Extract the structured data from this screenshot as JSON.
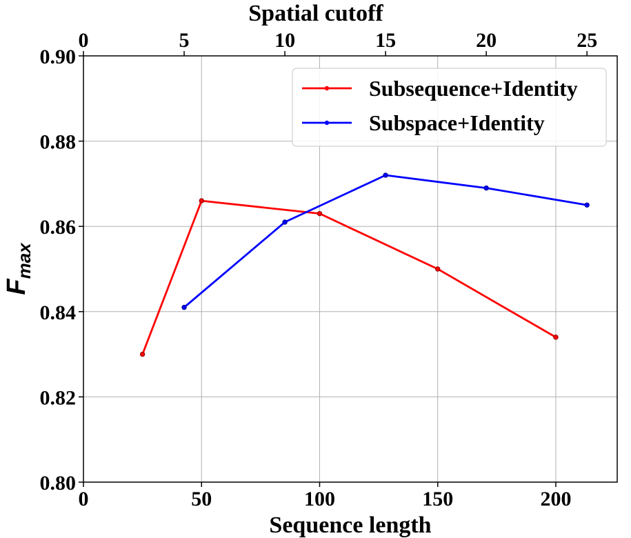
{
  "chart_data": {
    "type": "line",
    "ylabel": "F",
    "ylabel_subscript": "max",
    "xlabel_bottom": "Sequence length",
    "xlabel_top": "Spatial cutoff",
    "ylim": [
      0.8,
      0.9
    ],
    "yticks": [
      "0.80",
      "0.82",
      "0.84",
      "0.86",
      "0.88",
      "0.90"
    ],
    "ytick_values": [
      0.8,
      0.82,
      0.84,
      0.86,
      0.88,
      0.9
    ],
    "bottom_xlim": [
      0,
      226
    ],
    "bottom_xticks": [
      "0",
      "50",
      "100",
      "150",
      "200"
    ],
    "bottom_xtick_values": [
      0,
      50,
      100,
      150,
      200
    ],
    "top_xlim": [
      0,
      26.5
    ],
    "top_xticks": [
      "0",
      "5",
      "10",
      "15",
      "20",
      "25"
    ],
    "top_xtick_values": [
      0,
      5,
      10,
      15,
      20,
      25
    ],
    "grid": true,
    "legend_position": "top-right",
    "series": [
      {
        "name": "Subsequence+Identity",
        "color": "#ff0000",
        "axis": "bottom",
        "x": [
          25,
          50,
          100,
          150,
          200
        ],
        "y": [
          0.83,
          0.866,
          0.863,
          0.85,
          0.834
        ]
      },
      {
        "name": "Subspace+Identity",
        "color": "#0000ff",
        "axis": "top",
        "x": [
          5,
          10,
          15,
          20,
          25
        ],
        "y": [
          0.841,
          0.861,
          0.872,
          0.869,
          0.865
        ]
      }
    ]
  }
}
